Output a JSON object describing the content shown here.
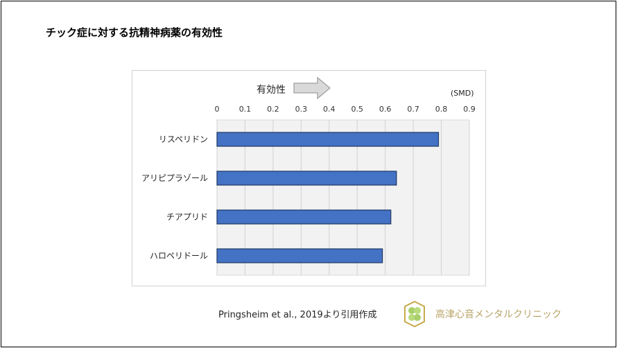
{
  "title": "チック症に対する抗精神病薬の有効性",
  "source": "Pringsheim  et al., 2019より引用作成",
  "logo_text": "高津心音メンタルクリニック",
  "chart_data": {
    "type": "bar",
    "orientation": "horizontal",
    "categories": [
      "リスペリドン",
      "アリピプラゾール",
      "チアプリド",
      "ハロペリドール"
    ],
    "values": [
      0.79,
      0.64,
      0.62,
      0.59
    ],
    "unit_label": "(SMD)",
    "annotation": "有効性",
    "xlim": [
      0,
      0.9
    ],
    "xticks": [
      "0",
      "0.1",
      "0.2",
      "0.3",
      "0.4",
      "0.5",
      "0.6",
      "0.7",
      "0.8",
      "0.9"
    ],
    "grid": true,
    "bar_color": "#4472c4",
    "plot_bg": "#f2f2f2"
  }
}
